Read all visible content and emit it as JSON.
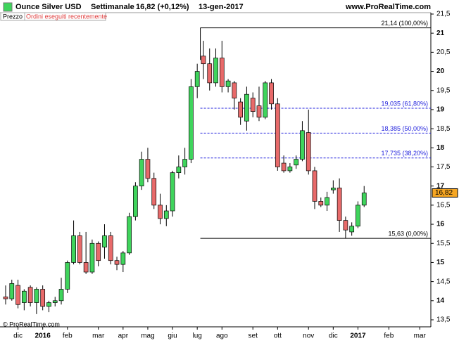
{
  "chart_data": {
    "type": "candlestick",
    "title": "Ounce Silver USD",
    "period": "Settimanale",
    "last_change": "16,82 (+0,12%)",
    "date": "13-gen-2017",
    "site": "www.ProRealTime.com",
    "panel_label": "Prezzo",
    "orders_label": "Ordini eseguiti recentemente",
    "copyright": "© ProRealTime.com",
    "categories": [
      null,
      null,
      "dic",
      null,
      null,
      null,
      "2016",
      null,
      null,
      null,
      "feb",
      null,
      null,
      null,
      null,
      "mar",
      null,
      null,
      null,
      "apr",
      null,
      null,
      null,
      "mag",
      null,
      null,
      null,
      "giu",
      null,
      null,
      null,
      "lug",
      null,
      null,
      null,
      "ago",
      null,
      null,
      null,
      null,
      "set",
      null,
      null,
      null,
      "ott",
      null,
      null,
      null,
      null,
      "nov",
      null,
      null,
      null,
      "dic",
      null,
      null,
      null,
      "2017",
      null,
      null,
      null,
      null,
      "feb",
      null,
      null,
      null,
      null,
      "mar",
      null
    ],
    "open": [
      14.1,
      14.05,
      14.4,
      13.95,
      14.35,
      13.95,
      14.3,
      13.85,
      13.95,
      14.0,
      14.3,
      15.0,
      15.7,
      15.0,
      14.75,
      15.5,
      15.4,
      15.7,
      15.05,
      14.95,
      15.25,
      16.2,
      17.0,
      17.7,
      17.2,
      16.5,
      16.15,
      16.35,
      17.35,
      17.5,
      17.7,
      19.6,
      20.4,
      20.2,
      19.7,
      20.35,
      19.6,
      19.7,
      19.2,
      18.7,
      19.3,
      19.1,
      18.8,
      19.7,
      19.15,
      17.6,
      17.4,
      17.55,
      17.7,
      18.4,
      17.4,
      16.6,
      16.5,
      16.9,
      16.95,
      16.1,
      15.8,
      15.95,
      16.5,
      null,
      null,
      null,
      null,
      null,
      null,
      null,
      null,
      null,
      null
    ],
    "high": [
      14.4,
      14.55,
      14.55,
      14.3,
      14.4,
      14.35,
      14.4,
      14.0,
      14.1,
      14.6,
      15.05,
      16.1,
      15.8,
      15.8,
      15.6,
      15.55,
      16.0,
      15.8,
      15.15,
      15.3,
      16.3,
      17.1,
      17.9,
      18.0,
      17.35,
      16.8,
      16.5,
      17.4,
      17.8,
      18.0,
      19.8,
      20.2,
      20.8,
      20.6,
      20.6,
      20.8,
      19.8,
      19.75,
      19.3,
      19.6,
      19.45,
      19.6,
      19.75,
      19.8,
      19.3,
      17.8,
      17.6,
      17.8,
      18.7,
      19.0,
      17.5,
      16.7,
      16.85,
      17.15,
      17.2,
      16.2,
      16.05,
      16.6,
      17.0,
      null,
      null,
      null,
      null,
      null,
      null,
      null,
      null,
      null,
      null
    ],
    "low": [
      13.9,
      14.0,
      13.8,
      13.75,
      13.85,
      13.65,
      13.75,
      13.7,
      13.85,
      13.9,
      14.2,
      14.95,
      14.95,
      14.7,
      14.7,
      14.9,
      15.1,
      14.95,
      14.8,
      14.75,
      15.2,
      16.1,
      16.9,
      17.1,
      16.4,
      16.0,
      15.95,
      16.2,
      17.2,
      17.3,
      17.6,
      19.3,
      19.8,
      19.5,
      19.6,
      19.45,
      19.45,
      19.0,
      18.6,
      18.45,
      18.8,
      18.7,
      18.75,
      19.0,
      17.4,
      17.35,
      17.35,
      17.45,
      17.65,
      17.3,
      16.4,
      16.45,
      16.35,
      16.8,
      15.8,
      15.63,
      15.7,
      15.9,
      16.45,
      null,
      null,
      null,
      null,
      null,
      null,
      null,
      null,
      null,
      null
    ],
    "close": [
      14.05,
      14.45,
      13.9,
      14.25,
      13.95,
      14.3,
      13.85,
      13.95,
      14.0,
      14.3,
      15.0,
      15.7,
      15.0,
      14.75,
      15.5,
      15.05,
      15.7,
      15.05,
      14.95,
      15.25,
      16.2,
      17.0,
      17.7,
      17.2,
      16.5,
      16.15,
      16.35,
      17.35,
      17.5,
      17.7,
      19.6,
      20.0,
      20.2,
      19.7,
      20.35,
      19.6,
      19.75,
      19.3,
      18.8,
      19.4,
      18.95,
      18.8,
      19.7,
      19.15,
      17.5,
      17.4,
      17.5,
      17.7,
      18.45,
      17.4,
      16.6,
      16.5,
      16.7,
      16.95,
      16.1,
      15.85,
      15.95,
      16.5,
      16.82,
      null,
      null,
      null,
      null,
      null,
      null,
      null,
      null,
      null,
      null
    ],
    "up_color": "#3fd45c",
    "down_color": "#e86a6a",
    "ylim": [
      13.5,
      21.5
    ],
    "yticks": [
      {
        "value": 13.5,
        "label": "13,5"
      },
      14,
      {
        "value": 14.5,
        "label": "14,5"
      },
      15,
      {
        "value": 15.5,
        "label": "15,5"
      },
      16,
      {
        "value": 16.5,
        "label": "16,5"
      },
      17,
      {
        "value": 17.5,
        "label": "17,5"
      },
      18,
      {
        "value": 18.5,
        "label": "18,5"
      },
      19,
      {
        "value": 19.5,
        "label": "19,5"
      },
      20,
      {
        "value": 20.5,
        "label": "20,5"
      },
      21,
      {
        "value": 21.5,
        "label": "21,5"
      }
    ],
    "fib_levels": [
      {
        "value": 21.14,
        "label": "21,14 (100,00%)",
        "color": "#000000"
      },
      {
        "value": 19.035,
        "label": "19,035 (61,80%)",
        "color": "#2222dd"
      },
      {
        "value": 18.385,
        "label": "18,385 (50,00%)",
        "color": "#2222dd"
      },
      {
        "value": 17.735,
        "label": "17,735 (38,20%)",
        "color": "#2222dd"
      },
      {
        "value": 15.63,
        "label": "15,63 (0,00%)",
        "color": "#000000"
      }
    ],
    "last_price": {
      "value": 16.82,
      "label": "16,82",
      "color": "#f5a623"
    }
  }
}
